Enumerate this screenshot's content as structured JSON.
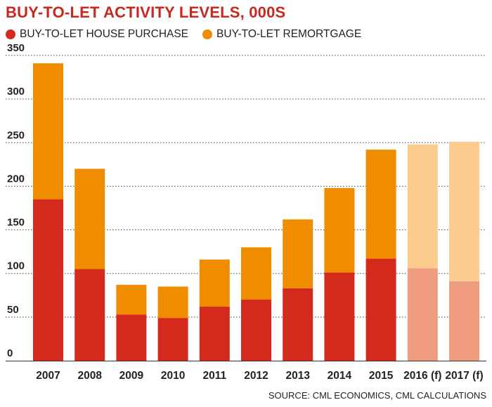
{
  "chart_data": {
    "type": "bar",
    "stacked": true,
    "title": "BUY-TO-LET ACTIVITY LEVELS, 000S",
    "source": "SOURCE: CML ECONOMICS, CML CALCULATIONS",
    "categories": [
      "2007",
      "2008",
      "2009",
      "2010",
      "2011",
      "2012",
      "2013",
      "2014",
      "2015",
      "2016 (f)",
      "2017 (f)"
    ],
    "forecast_categories": [
      "2016 (f)",
      "2017 (f)"
    ],
    "series": [
      {
        "name": "BUY-TO-LET HOUSE PURCHASE",
        "color": "#d42a1e",
        "forecast_color": "#ef9c7f",
        "values": [
          185,
          105,
          53,
          49,
          62,
          70,
          83,
          101,
          117,
          106,
          91
        ]
      },
      {
        "name": "BUY-TO-LET REMORTGAGE",
        "color": "#f08c00",
        "forecast_color": "#fccc8e",
        "values": [
          156,
          115,
          34,
          36,
          54,
          60,
          79,
          97,
          125,
          142,
          160
        ]
      }
    ],
    "yticks": [
      0,
      50,
      100,
      150,
      200,
      250,
      300,
      350
    ],
    "ylim": [
      0,
      350
    ],
    "grid": true,
    "legend_position": "top-left",
    "background_color": "#ffffff",
    "grid_color": "#444444"
  }
}
